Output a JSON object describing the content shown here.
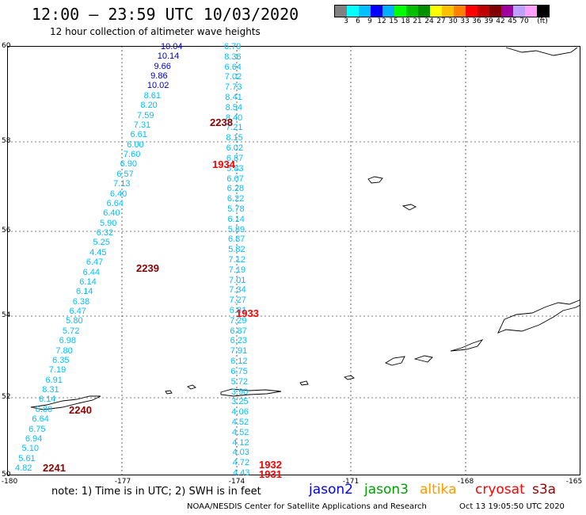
{
  "header": {
    "title": "12:00 – 23:59 UTC 10/03/2020",
    "subtitle": "12 hour collection of altimeter wave heights"
  },
  "colorbar": {
    "colors": [
      "#808080",
      "#00ffff",
      "#00c0ff",
      "#0000ff",
      "#00b0ff",
      "#00ff00",
      "#00c000",
      "#009000",
      "#ffff00",
      "#ffc000",
      "#ff8000",
      "#ff0000",
      "#c00000",
      "#800000",
      "#a000a0",
      "#c0a0ff",
      "#ffa0ff",
      "#000000"
    ],
    "labels": [
      "3",
      "6",
      "9",
      "12",
      "15",
      "18",
      "21",
      "24",
      "27",
      "30",
      "33",
      "36",
      "39",
      "42",
      "45",
      "70",
      "(ft)"
    ]
  },
  "axes": {
    "lat_labels": [
      "60",
      "58",
      "56",
      "54",
      "52",
      "50"
    ],
    "lon_labels": [
      "-180",
      "-177",
      "-174",
      "-171",
      "-168",
      "-165"
    ]
  },
  "tracks": {
    "west_pass": {
      "color": "#00bfff",
      "values": [
        "10.04",
        "10.14",
        "9.66",
        "9.86",
        "10.02",
        "8.61",
        "8.20",
        "7.59",
        "7.31",
        "6.61",
        "6.00",
        "7.60",
        "6.90",
        "6.57",
        "7.13",
        "6.40",
        "6.64",
        "6.40",
        "5.90",
        "6.32",
        "5.25",
        "4.45",
        "6.47",
        "6.44",
        "6.14",
        "6.14",
        "6.38",
        "6.47",
        "5.80",
        "5.72",
        "6.98",
        "7.80",
        "6.35",
        "7.19",
        "6.91",
        "8.31",
        "6.14",
        "6.80",
        "6.64",
        "6.75",
        "6.94",
        "5.10",
        "5.61",
        "4.82"
      ]
    },
    "east_pass": {
      "color": "#00bfff",
      "values": [
        "6.79",
        "8.36",
        "6.64",
        "7.02",
        "7.73",
        "8.41",
        "8.54",
        "8.40",
        "7.21",
        "8.15",
        "6.02",
        "6.87",
        "5.83",
        "6.07",
        "6.28",
        "6.22",
        "5.78",
        "6.14",
        "5.89",
        "6.87",
        "5.82",
        "7.12",
        "7.19",
        "7.01",
        "7.34",
        "7.27",
        "6.81",
        "7.29",
        "6.87",
        "6.23",
        "7.91",
        "6.12",
        "6.75",
        "5.72",
        "3.90",
        "3.25",
        "4.06",
        "4.52",
        "4.52",
        "4.12",
        "4.03",
        "4.72",
        "4.43"
      ]
    },
    "time_labels": [
      "2238",
      "1934",
      "2239",
      "1933",
      "2240",
      "1932",
      "2241",
      "1931"
    ]
  },
  "footer": {
    "note": "note: 1) Time is in UTC; 2) SWH is in feet",
    "legend": [
      {
        "label": "jason2",
        "color": "#0000ff"
      },
      {
        "label": "jason3",
        "color": "#00a000"
      },
      {
        "label": "altika",
        "color": "#ff9900"
      },
      {
        "label": "cryosat",
        "color": "#ff0000"
      },
      {
        "label": "s3a",
        "color": "#a00000"
      }
    ],
    "credit": "NOAA/NESDIS Center for Satellite Applications and Research",
    "timestamp": "Oct 13 19:05:50 UTC 2020"
  }
}
